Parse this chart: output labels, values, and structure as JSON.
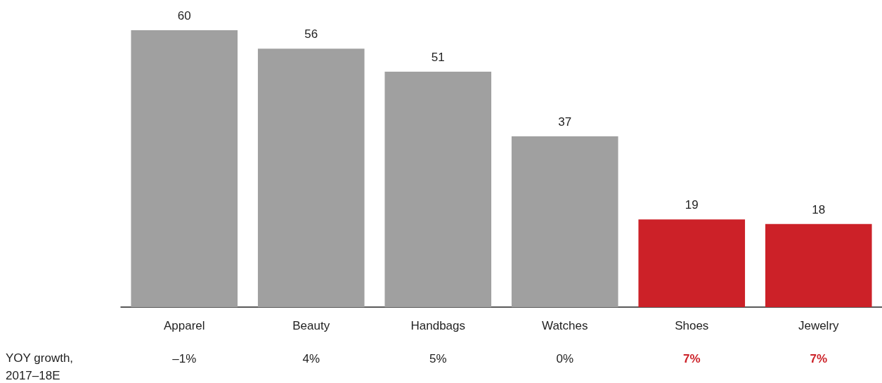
{
  "chart_data": {
    "type": "bar",
    "categories": [
      "Apparel",
      "Beauty",
      "Handbags",
      "Watches",
      "Shoes",
      "Jewelry"
    ],
    "values": [
      60,
      56,
      51,
      37,
      19,
      18
    ],
    "colors": [
      "#a0a0a0",
      "#a0a0a0",
      "#a0a0a0",
      "#a0a0a0",
      "#cc2128",
      "#cc2128"
    ],
    "data_labels": true,
    "grid": false,
    "annotations": [
      "YOY growth, 2017–18E",
      "–1%",
      "4%",
      "5%",
      "0%",
      "7%",
      "7%"
    ]
  }
}
